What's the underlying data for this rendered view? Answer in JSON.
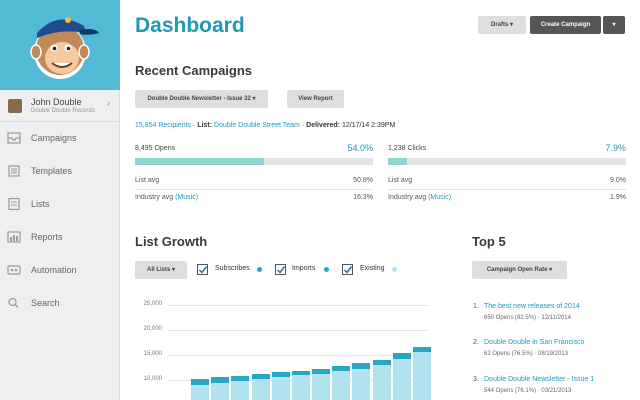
{
  "user": {
    "name": "John Double",
    "org": "Double Double Records"
  },
  "nav": [
    "Campaigns",
    "Templates",
    "Lists",
    "Reports",
    "Automation",
    "Search"
  ],
  "header": {
    "title": "Dashboard",
    "drafts_label": "Drafts",
    "create_label": "Create Campaign"
  },
  "recent": {
    "title": "Recent Campaigns",
    "campaign_select": "Double Double Newsletter - Issue 32",
    "view_report": "View Report",
    "recipients": "15,854 Recipients",
    "sep1": "·",
    "list_label": "List:",
    "list_name": "Double Double Street Team",
    "sep2": "·",
    "delivered_label": "Delivered:",
    "delivered": "12/17/14 2:39PM",
    "opens": {
      "label": "8,495 Opens",
      "pct": "54.0%",
      "value": 0.54,
      "list_avg_label": "List avg",
      "list_avg": "50.8%",
      "industry_label": "Industry avg",
      "industry_link": "(Music)",
      "industry_avg": "16.3%"
    },
    "clicks": {
      "label": "1,238 Clicks",
      "pct": "7.9%",
      "value": 0.079,
      "list_avg_label": "List avg",
      "list_avg": "9.0%",
      "industry_label": "Industry avg",
      "industry_link": "(Music)",
      "industry_avg": "1.9%"
    }
  },
  "growth": {
    "title": "List Growth",
    "lists_select": "All Lists",
    "legend": [
      {
        "label": "Subscribes",
        "color": "#26a7c4"
      },
      {
        "label": "Imports",
        "color": "#26a7c4"
      },
      {
        "label": "Existing",
        "color": "#b3e2ef"
      }
    ]
  },
  "chart_data": {
    "type": "bar",
    "stacked": true,
    "yticks": [
      "25,000",
      "20,000",
      "15,000",
      "10,000"
    ],
    "series": [
      {
        "name": "Existing",
        "color": "#b3e2ef",
        "values": [
          0,
          9000,
          9500,
          9900,
          10300,
          10700,
          11000,
          11300,
          11800,
          12300,
          13000,
          14200,
          15600
        ]
      },
      {
        "name": "Subscribes",
        "color": "#26a7c4",
        "values": [
          3800,
          1300,
          1100,
          1000,
          1000,
          900,
          900,
          1000,
          1000,
          1100,
          1100,
          1200,
          1000
        ]
      }
    ]
  },
  "top5": {
    "title": "Top 5",
    "select": "Campaign Open Rate",
    "items": [
      {
        "num": "1.",
        "title": "The best new releases of 2014",
        "sub": "650 Opens (82.5%) · 12/11/2014"
      },
      {
        "num": "2.",
        "title": "Double Double in San Francisco",
        "sub": "62 Opens (76.5%) · 08/19/2013"
      },
      {
        "num": "3.",
        "title": "Double Double Newsletter - Issue 1",
        "sub": "544 Opens (76.1%) · 03/21/2013"
      }
    ]
  }
}
